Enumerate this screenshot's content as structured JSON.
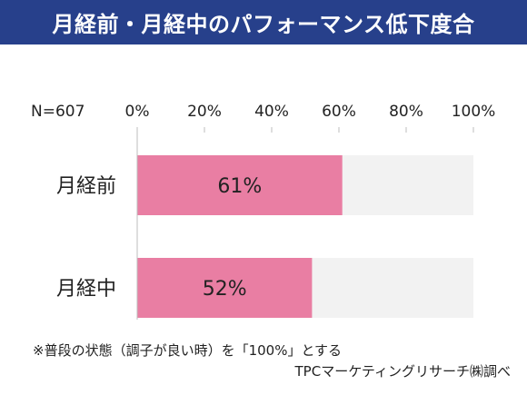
{
  "title": "月経前・月経中のパフォーマンス低下度合",
  "sample_size_label": "N=607",
  "note": "※普段の状態（調子が良い時）を「100%」とする",
  "source": "TPCマーケティングリサーチ㈱調べ",
  "colors": {
    "title_bg": "#27408b",
    "bar": "#e97ea3",
    "track": "#f2f2f2",
    "axis": "#bdbdbd"
  },
  "chart_data": {
    "type": "bar",
    "orientation": "horizontal",
    "categories": [
      "月経前",
      "月経中"
    ],
    "values": [
      61,
      52
    ],
    "value_labels": [
      "61%",
      "52%"
    ],
    "xlim": [
      0,
      100
    ],
    "xticks": [
      0,
      20,
      40,
      60,
      80,
      100
    ],
    "xtick_labels": [
      "0%",
      "20%",
      "40%",
      "60%",
      "80%",
      "100%"
    ],
    "grid": false,
    "legend": "none"
  }
}
